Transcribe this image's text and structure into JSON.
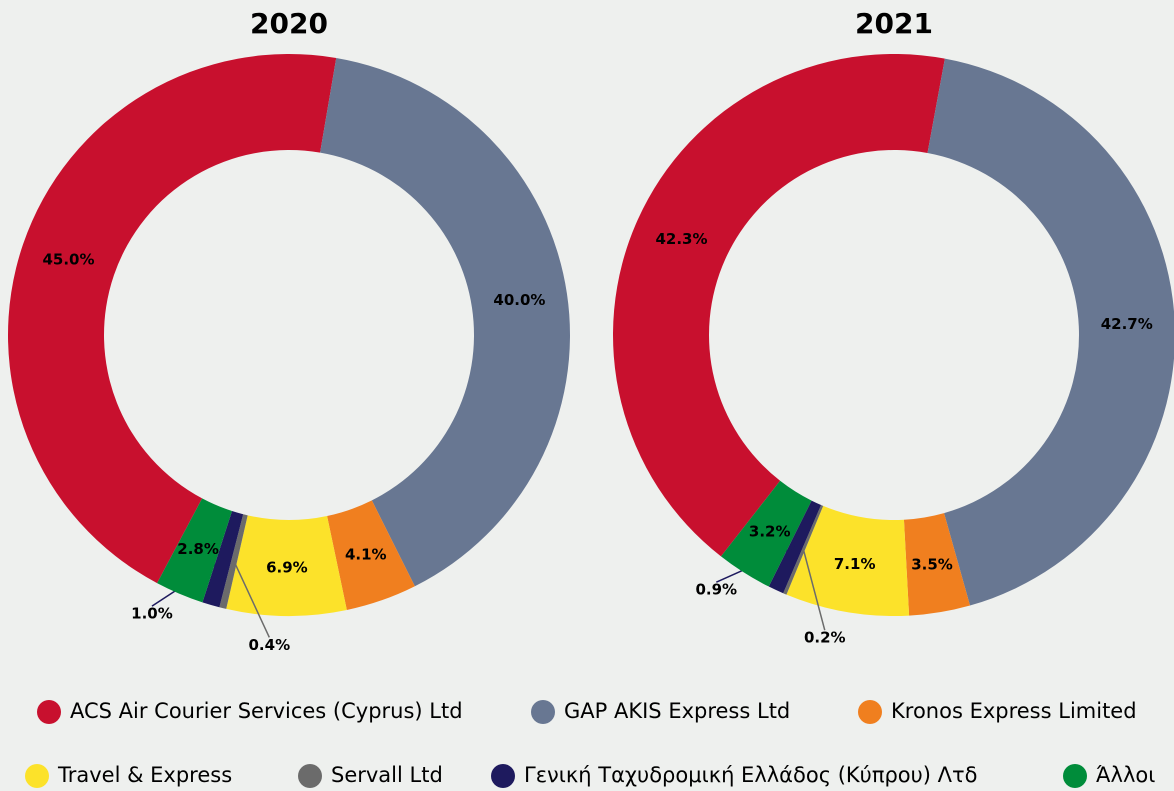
{
  "chart_data": [
    {
      "type": "donut",
      "title": "2020",
      "categories": [
        "ACS Air Courier Services (Cyprus) Ltd",
        "GAP AKIS Express Ltd",
        "Kronos Express Limited",
        "Travel & Express",
        "Servall Ltd",
        "Γενική Ταχυδρομική Ελλάδος (Κύπρου) Λτδ",
        "Άλλοι"
      ],
      "values": [
        45.0,
        40.0,
        4.1,
        6.9,
        0.4,
        1.0,
        2.8
      ],
      "value_labels": [
        "45.0%",
        "40.0%",
        "4.1%",
        "6.9%",
        "0.4%",
        "1.0%",
        "2.8%"
      ],
      "colors": [
        "#c8102e",
        "#687792",
        "#f07f1f",
        "#fce22a",
        "#6b6b6b",
        "#1e1a5e",
        "#008c3a"
      ]
    },
    {
      "type": "donut",
      "title": "2021",
      "categories": [
        "ACS Air Courier Services (Cyprus) Ltd",
        "GAP AKIS Express Ltd",
        "Kronos Express Limited",
        "Travel & Express",
        "Servall Ltd",
        "Γενική Ταχυδρομική Ελλάδος (Κύπρου) Λτδ",
        "Άλλοι"
      ],
      "values": [
        42.3,
        42.7,
        3.5,
        7.1,
        0.2,
        0.9,
        3.2
      ],
      "value_labels": [
        "42.3%",
        "42.7%",
        "3.5%",
        "7.1%",
        "0.2%",
        "0.9%",
        "3.2%"
      ],
      "colors": [
        "#c8102e",
        "#687792",
        "#f07f1f",
        "#fce22a",
        "#6b6b6b",
        "#1e1a5e",
        "#008c3a"
      ]
    }
  ]
}
